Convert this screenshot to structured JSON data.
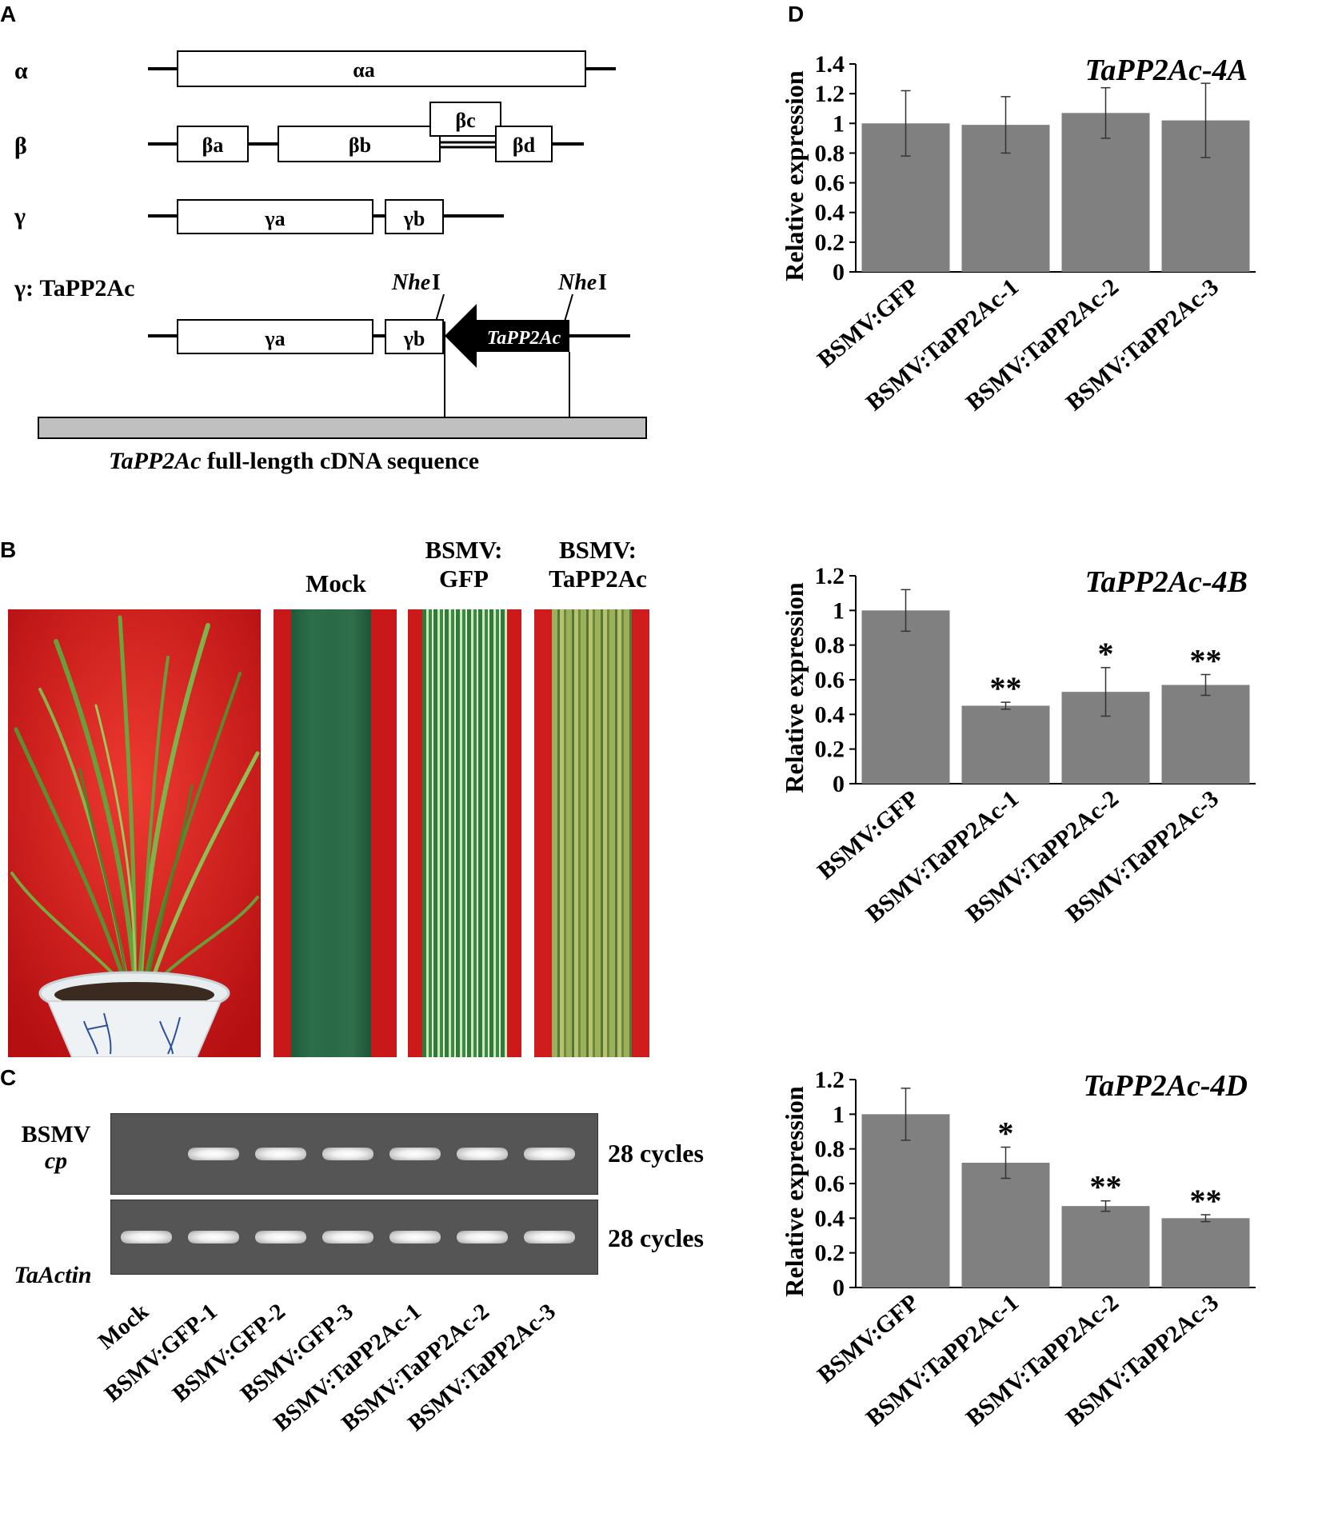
{
  "panels": {
    "A": {
      "letter": "A",
      "alpha": {
        "label": "α",
        "boxes": [
          "αa"
        ]
      },
      "beta": {
        "label": "β",
        "boxes": [
          "βa",
          "βb",
          "βc",
          "βd"
        ]
      },
      "gamma": {
        "label": "γ",
        "boxes": [
          "γa",
          "γb"
        ]
      },
      "construct": {
        "label": "γ: TaPP2Ac",
        "boxes": [
          "γa",
          "γb"
        ],
        "insert": "TaPP2Ac",
        "site": "Nhe",
        "site_suffix": "I"
      },
      "cdna": {
        "gene": "TaPP2Ac",
        "text": " full-length cDNA sequence"
      }
    },
    "B": {
      "letter": "B",
      "labels": {
        "mock": "Mock",
        "gfp_line1": "BSMV:",
        "gfp_line2": "GFP",
        "ta_line1": "BSMV:",
        "ta_line2": "TaPP2Ac"
      }
    },
    "C": {
      "letter": "C",
      "rows": [
        {
          "label_line1": "BSMV",
          "label_line2": "cp",
          "cycles": "28 cycles",
          "bands": [
            false,
            true,
            true,
            true,
            true,
            true,
            true
          ]
        },
        {
          "label_line1": "TaActin",
          "label_line2": "",
          "cycles": "28 cycles",
          "bands": [
            true,
            true,
            true,
            true,
            true,
            true,
            true
          ]
        }
      ],
      "lanes": [
        "Mock",
        "BSMV:GFP-1",
        "BSMV:GFP-2",
        "BSMV:GFP-3",
        "BSMV:TaPP2Ac-1",
        "BSMV:TaPP2Ac-2",
        "BSMV:TaPP2Ac-3"
      ]
    },
    "D": {
      "letter": "D"
    }
  },
  "chart_data": [
    {
      "type": "bar",
      "title": "TaPP2Ac-4A",
      "ylabel": "Relative expression",
      "categories": [
        "BSMV:GFP",
        "BSMV:TaPP2Ac-1",
        "BSMV:TaPP2Ac-2",
        "BSMV:TaPP2Ac-3"
      ],
      "values": [
        1.0,
        0.99,
        1.07,
        1.02
      ],
      "errors": [
        0.22,
        0.19,
        0.17,
        0.25
      ],
      "significance": [
        "",
        "",
        "",
        ""
      ],
      "ylim": [
        0,
        1.4
      ],
      "yticks": [
        0,
        0.2,
        0.4,
        0.6,
        0.8,
        1,
        1.2,
        1.4
      ],
      "ytick_labels": [
        "0",
        "0.2",
        "0.4",
        "0.6",
        "0.8",
        "1",
        "1.2",
        "1.4"
      ],
      "bar_color": "#808080"
    },
    {
      "type": "bar",
      "title": "TaPP2Ac-4B",
      "ylabel": "Relative expression",
      "categories": [
        "BSMV:GFP",
        "BSMV:TaPP2Ac-1",
        "BSMV:TaPP2Ac-2",
        "BSMV:TaPP2Ac-3"
      ],
      "values": [
        1.0,
        0.45,
        0.53,
        0.57
      ],
      "errors": [
        0.12,
        0.02,
        0.14,
        0.06
      ],
      "significance": [
        "",
        "**",
        "*",
        "**"
      ],
      "ylim": [
        0,
        1.2
      ],
      "yticks": [
        0,
        0.2,
        0.4,
        0.6,
        0.8,
        1,
        1.2
      ],
      "ytick_labels": [
        "0",
        "0.2",
        "0.4",
        "0.6",
        "0.8",
        "1",
        "1.2"
      ],
      "bar_color": "#808080"
    },
    {
      "type": "bar",
      "title": "TaPP2Ac-4D",
      "ylabel": "Relative expression",
      "categories": [
        "BSMV:GFP",
        "BSMV:TaPP2Ac-1",
        "BSMV:TaPP2Ac-2",
        "BSMV:TaPP2Ac-3"
      ],
      "values": [
        1.0,
        0.72,
        0.47,
        0.4
      ],
      "errors": [
        0.15,
        0.09,
        0.03,
        0.02
      ],
      "significance": [
        "",
        "*",
        "**",
        "**"
      ],
      "ylim": [
        0,
        1.2
      ],
      "yticks": [
        0,
        0.2,
        0.4,
        0.6,
        0.8,
        1,
        1.2
      ],
      "ytick_labels": [
        "0",
        "0.2",
        "0.4",
        "0.6",
        "0.8",
        "1",
        "1.2"
      ],
      "bar_color": "#808080"
    }
  ]
}
